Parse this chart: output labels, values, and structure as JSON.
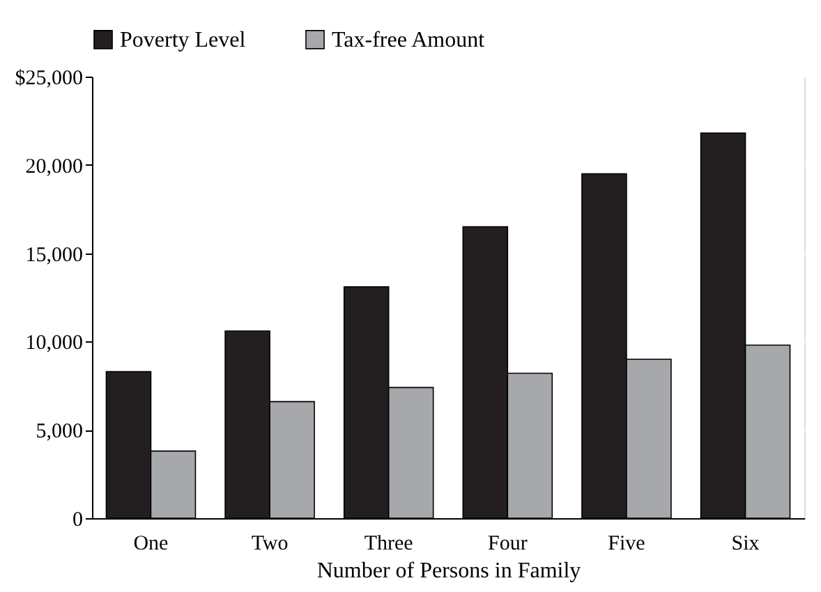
{
  "chart_data": {
    "type": "bar",
    "xlabel": "Number of Persons in Family",
    "categories": [
      "One",
      "Two",
      "Three",
      "Four",
      "Five",
      "Six"
    ],
    "series": [
      {
        "name": "Poverty Level",
        "color": "#231f20",
        "values": [
          8300,
          10600,
          13100,
          16500,
          19500,
          21800
        ]
      },
      {
        "name": "Tax-free Amount",
        "color": "#a7a8ab",
        "values": [
          3800,
          6600,
          7400,
          8200,
          9000,
          9800
        ]
      }
    ],
    "ylim": [
      0,
      25000
    ],
    "yticks": [
      0,
      {
        "value": 5000,
        "label": "5,000"
      },
      {
        "value": 10000,
        "label": "10,000"
      },
      {
        "value": 15000,
        "label": "15,000"
      },
      {
        "value": 20000,
        "label": "20,000"
      },
      {
        "value": 25000,
        "label": "$25,000"
      }
    ],
    "grid": "y",
    "legend": "top"
  }
}
